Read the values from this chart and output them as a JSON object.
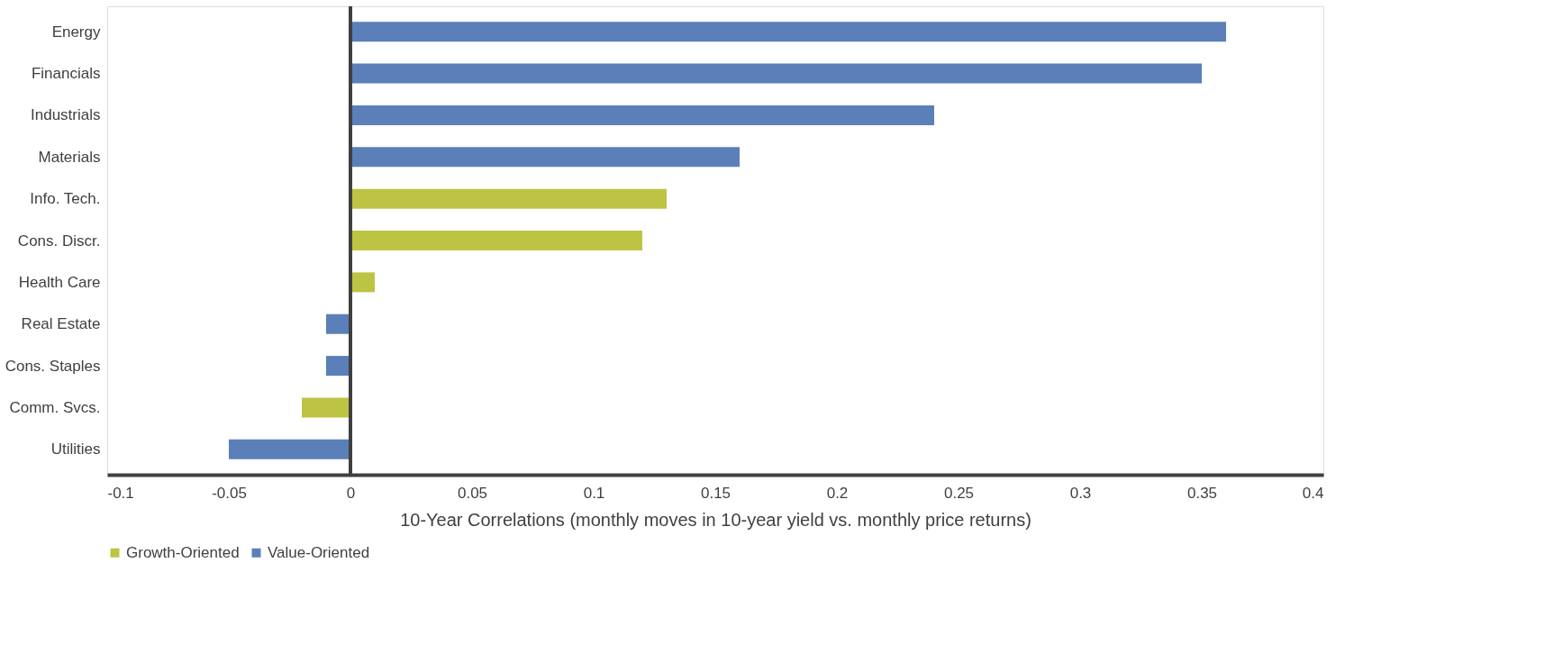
{
  "chart_data": {
    "type": "bar",
    "orientation": "horizontal",
    "xlabel": "10-Year Correlations (monthly moves in 10-year yield vs. monthly price returns)",
    "categories": [
      "Energy",
      "Financials",
      "Industrials",
      "Materials",
      "Info. Tech.",
      "Cons. Discr.",
      "Health Care",
      "Real Estate",
      "Cons. Staples",
      "Comm. Svcs.",
      "Utilities"
    ],
    "series": [
      {
        "name": "Growth-Oriented",
        "color": "#bdc443",
        "values": [
          null,
          null,
          null,
          null,
          0.13,
          0.12,
          0.01,
          null,
          null,
          -0.02,
          null
        ]
      },
      {
        "name": "Value-Oriented",
        "color": "#5b7fb8",
        "values": [
          0.36,
          0.35,
          0.24,
          0.16,
          null,
          null,
          null,
          -0.01,
          -0.01,
          null,
          -0.05
        ]
      }
    ],
    "xlim": [
      -0.1,
      0.4
    ],
    "xticks": [
      -0.1,
      -0.05,
      0,
      0.05,
      0.1,
      0.15,
      0.2,
      0.25,
      0.3,
      0.35,
      0.4
    ],
    "ref_lines": [
      {
        "axis": "x",
        "value": 0,
        "color": "#404040"
      }
    ],
    "grid": false,
    "legend": "bottom"
  }
}
